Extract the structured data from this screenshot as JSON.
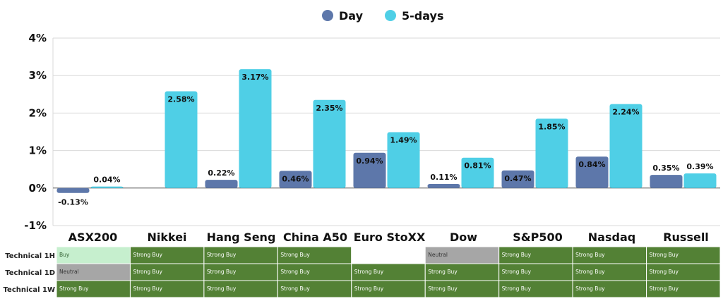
{
  "legend": {
    "day_label": "Day",
    "fivedays_label": "5-days"
  },
  "colors": {
    "day": "#5d77aa",
    "fivedays": "#4fcfe6",
    "strong_buy": "#538135",
    "buy": "#c6efce",
    "neutral": "#a6a6a6",
    "empty": "#ffffff"
  },
  "chart_data": {
    "type": "bar",
    "categories": [
      "ASX200",
      "Nikkei",
      "Hang Seng",
      "China A50",
      "Euro StoXX",
      "Dow",
      "S&P500",
      "Nasdaq",
      "Russell"
    ],
    "series": [
      {
        "name": "Day",
        "values": [
          -0.13,
          null,
          0.22,
          0.46,
          0.94,
          0.11,
          0.47,
          0.84,
          0.35
        ],
        "labels": [
          "-0.13%",
          "",
          "0.22%",
          "0.46%",
          "0.94%",
          "0.11%",
          "0.47%",
          "0.84%",
          "0.35%"
        ]
      },
      {
        "name": "5-days",
        "values": [
          0.04,
          2.58,
          3.17,
          2.35,
          1.49,
          0.81,
          1.85,
          2.24,
          0.39
        ],
        "labels": [
          "0.04%",
          "2.58%",
          "3.17%",
          "2.35%",
          "1.49%",
          "0.81%",
          "1.85%",
          "2.24%",
          "0.39%"
        ]
      }
    ],
    "yticks": [
      -1,
      0,
      1,
      2,
      3,
      4
    ],
    "ytick_labels": [
      "-1%",
      "0%",
      "1%",
      "2%",
      "3%",
      "4%"
    ],
    "ylim": [
      -1,
      4
    ],
    "grid": true,
    "legend_position": "top-center"
  },
  "technical_table": {
    "rows": [
      {
        "label": "Technical 1H",
        "cells": [
          "Buy",
          "Strong Buy",
          "Strong Buy",
          "Strong Buy",
          "",
          "Neutral",
          "Strong Buy",
          "Strong Buy",
          "Strong Buy"
        ]
      },
      {
        "label": "Technical 1D",
        "cells": [
          "Neutral",
          "Strong Buy",
          "Strong Buy",
          "Strong Buy",
          "Strong Buy",
          "Strong Buy",
          "Strong Buy",
          "Strong Buy",
          "Strong Buy"
        ]
      },
      {
        "label": "Technical 1W",
        "cells": [
          "Strong Buy",
          "Strong Buy",
          "Strong Buy",
          "Strong Buy",
          "Strong Buy",
          "Strong Buy",
          "Strong Buy",
          "Strong Buy",
          "Strong Buy"
        ]
      }
    ]
  }
}
